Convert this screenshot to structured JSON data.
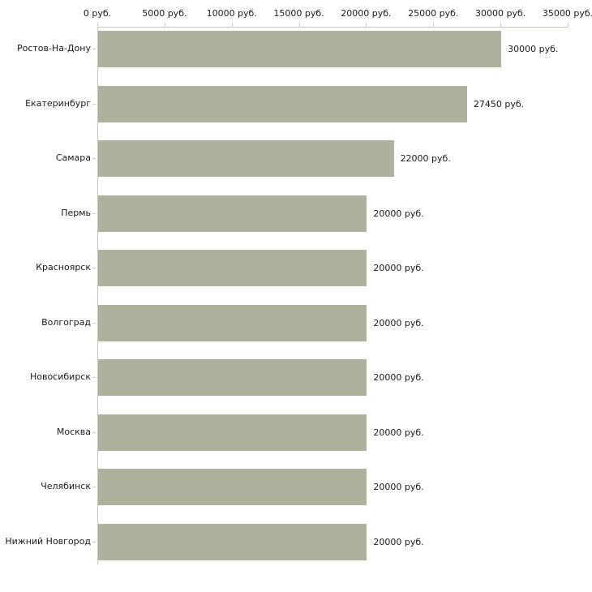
{
  "chart_data": {
    "type": "bar",
    "orientation": "horizontal",
    "title": "",
    "xlabel": "",
    "ylabel": "",
    "grid": false,
    "legend": false,
    "categories": [
      "Ростов-На-Дону",
      "Екатеринбург",
      "Самара",
      "Пермь",
      "Красноярск",
      "Волгоград",
      "Новосибирск",
      "Москва",
      "Челябинск",
      "Нижний Новгород"
    ],
    "values": [
      30000,
      27450,
      22000,
      20000,
      20000,
      20000,
      20000,
      20000,
      20000,
      20000
    ],
    "value_labels": [
      "30000 руб.",
      "27450 руб.",
      "22000 руб.",
      "20000 руб.",
      "20000 руб.",
      "20000 руб.",
      "20000 руб.",
      "20000 руб.",
      "20000 руб.",
      "20000 руб."
    ],
    "x_axis": {
      "position": "top",
      "min": 0,
      "max": 35000,
      "ticks": [
        0,
        5000,
        10000,
        15000,
        20000,
        25000,
        30000,
        35000
      ],
      "tick_labels": [
        "0 руб.",
        "5000 руб.",
        "10000 руб.",
        "15000 руб.",
        "20000 руб.",
        "25000 руб.",
        "30000 руб.",
        "35000 руб."
      ]
    },
    "colors": {
      "bar": "#acb29c",
      "axis_line": "#c6c6bd",
      "tick": "#d2d2ab",
      "text": "#1a1a1a",
      "background": "#ffffff"
    }
  }
}
